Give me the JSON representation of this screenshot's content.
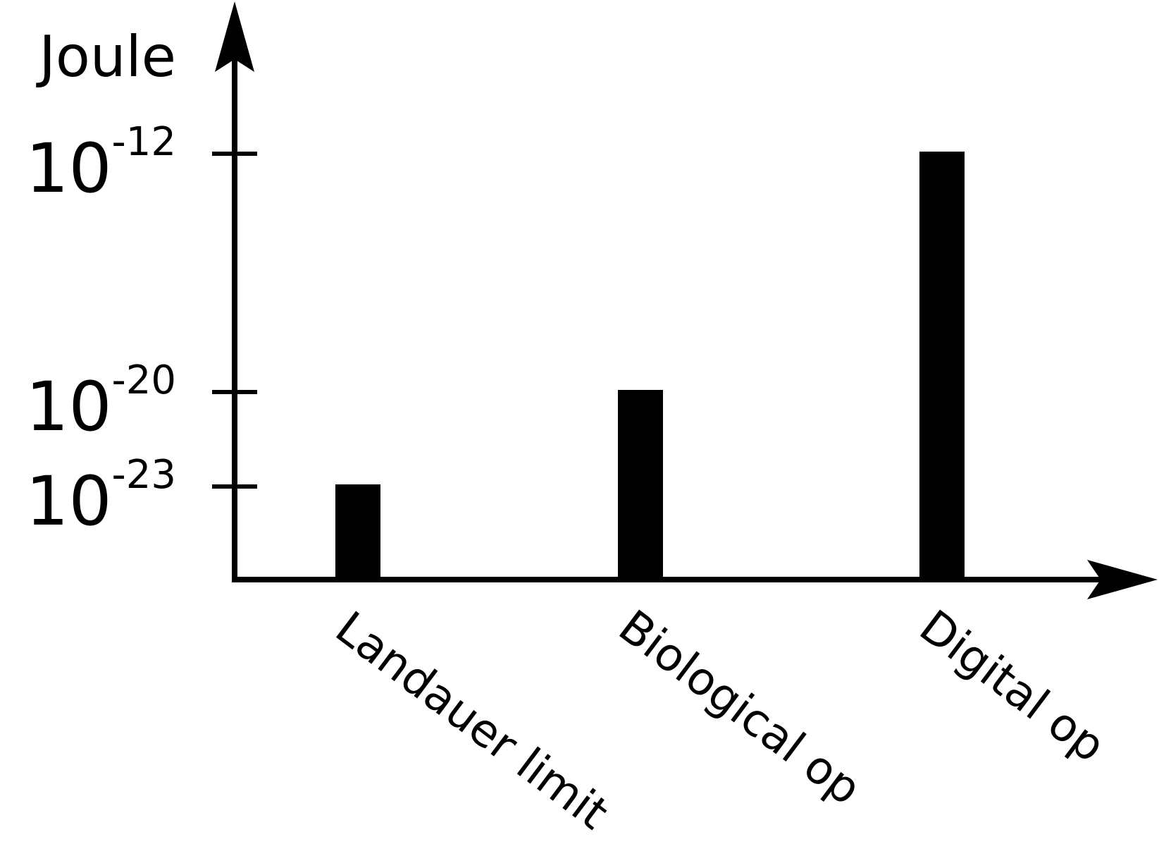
{
  "chart_data": {
    "type": "bar",
    "title": "",
    "xlabel": "",
    "ylabel": "Joule",
    "yscale": "log",
    "categories": [
      "Landauer limit",
      "Biological op",
      "Digital op"
    ],
    "values": [
      1e-23,
      1e-20,
      1e-12
    ],
    "yticks": [
      {
        "value": 1e-23,
        "base": "10",
        "exponent": "-23"
      },
      {
        "value": 1e-20,
        "base": "10",
        "exponent": "-20"
      },
      {
        "value": 1e-12,
        "base": "10",
        "exponent": "-12"
      }
    ],
    "grid": false,
    "legend": "none",
    "bar_color": "#000000",
    "axis_color": "#000000"
  }
}
